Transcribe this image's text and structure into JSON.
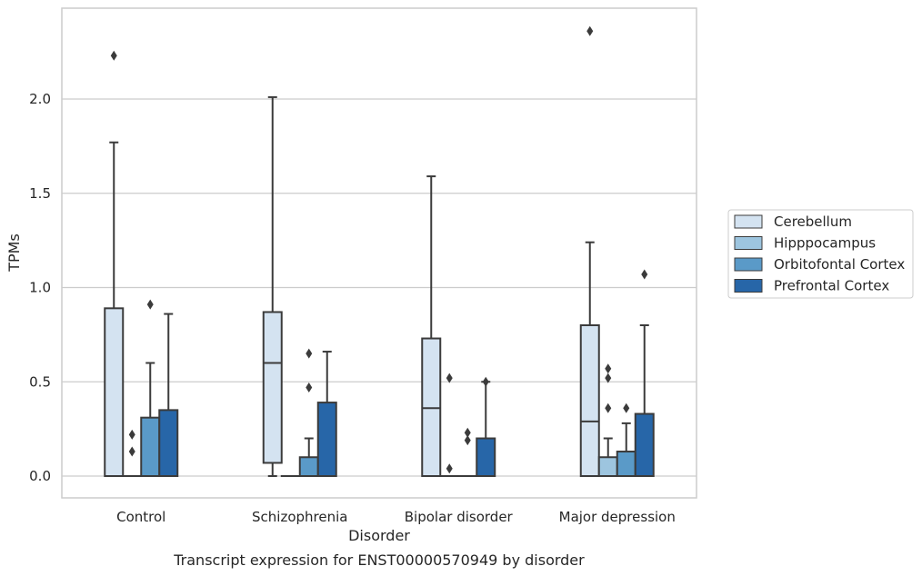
{
  "chart_data": {
    "type": "box",
    "xlabel": "Disorder",
    "ylabel": "TPMs",
    "caption": "Transcript expression for ENST00000570949 by disorder",
    "ylim": [
      -0.11,
      2.48
    ],
    "yticks": [
      "0.0",
      "0.5",
      "1.0",
      "1.5",
      "2.0"
    ],
    "ytick_values": [
      0.0,
      0.5,
      1.0,
      1.5,
      2.0
    ],
    "grid": true,
    "legend_position": "right",
    "categories": [
      "Control",
      "Schizophrenia",
      "Bipolar disorder",
      "Major depression"
    ],
    "series": [
      {
        "name": "Cerebellum",
        "color": "#d4e3f1",
        "boxes": [
          {
            "q1": 0.0,
            "median": 0.0,
            "q3": 0.89,
            "whislo": 0.0,
            "whishi": 1.77,
            "fliers": [
              2.23
            ]
          },
          {
            "q1": 0.07,
            "median": 0.6,
            "q3": 0.87,
            "whislo": 0.0,
            "whishi": 2.01,
            "fliers": []
          },
          {
            "q1": 0.0,
            "median": 0.36,
            "q3": 0.73,
            "whislo": 0.0,
            "whishi": 1.59,
            "fliers": []
          },
          {
            "q1": 0.0,
            "median": 0.29,
            "q3": 0.8,
            "whislo": 0.0,
            "whishi": 1.24,
            "fliers": [
              2.36
            ]
          }
        ]
      },
      {
        "name": "Hipppocampus",
        "color": "#9dc5df",
        "boxes": [
          {
            "q1": 0.0,
            "median": 0.0,
            "q3": 0.0,
            "whislo": 0.0,
            "whishi": 0.0,
            "fliers": [
              0.13,
              0.22
            ]
          },
          {
            "q1": 0.0,
            "median": 0.0,
            "q3": 0.0,
            "whislo": 0.0,
            "whishi": 0.0,
            "fliers": []
          },
          {
            "q1": 0.0,
            "median": 0.0,
            "q3": 0.0,
            "whislo": 0.0,
            "whishi": 0.0,
            "fliers": [
              0.04,
              0.52
            ]
          },
          {
            "q1": 0.0,
            "median": 0.0,
            "q3": 0.1,
            "whislo": 0.0,
            "whishi": 0.2,
            "fliers": [
              0.36,
              0.52,
              0.57
            ]
          }
        ]
      },
      {
        "name": "Orbitofontal Cortex",
        "color": "#5a9ac8",
        "boxes": [
          {
            "q1": 0.0,
            "median": 0.0,
            "q3": 0.31,
            "whislo": 0.0,
            "whishi": 0.6,
            "fliers": [
              0.91
            ]
          },
          {
            "q1": 0.0,
            "median": 0.0,
            "q3": 0.1,
            "whislo": 0.0,
            "whishi": 0.2,
            "fliers": [
              0.47,
              0.65
            ]
          },
          {
            "q1": 0.0,
            "median": 0.0,
            "q3": 0.0,
            "whislo": 0.0,
            "whishi": 0.0,
            "fliers": [
              0.19,
              0.23
            ]
          },
          {
            "q1": 0.0,
            "median": 0.0,
            "q3": 0.13,
            "whislo": 0.0,
            "whishi": 0.28,
            "fliers": [
              0.36
            ]
          }
        ]
      },
      {
        "name": "Prefrontal Cortex",
        "color": "#2766a8",
        "boxes": [
          {
            "q1": 0.0,
            "median": 0.0,
            "q3": 0.35,
            "whislo": 0.0,
            "whishi": 0.86,
            "fliers": []
          },
          {
            "q1": 0.0,
            "median": 0.0,
            "q3": 0.39,
            "whislo": 0.0,
            "whishi": 0.66,
            "fliers": []
          },
          {
            "q1": 0.0,
            "median": 0.0,
            "q3": 0.2,
            "whislo": 0.0,
            "whishi": 0.5,
            "fliers": [
              0.5
            ]
          },
          {
            "q1": 0.0,
            "median": 0.0,
            "q3": 0.33,
            "whislo": 0.0,
            "whishi": 0.8,
            "fliers": [
              1.07
            ]
          }
        ]
      }
    ]
  }
}
